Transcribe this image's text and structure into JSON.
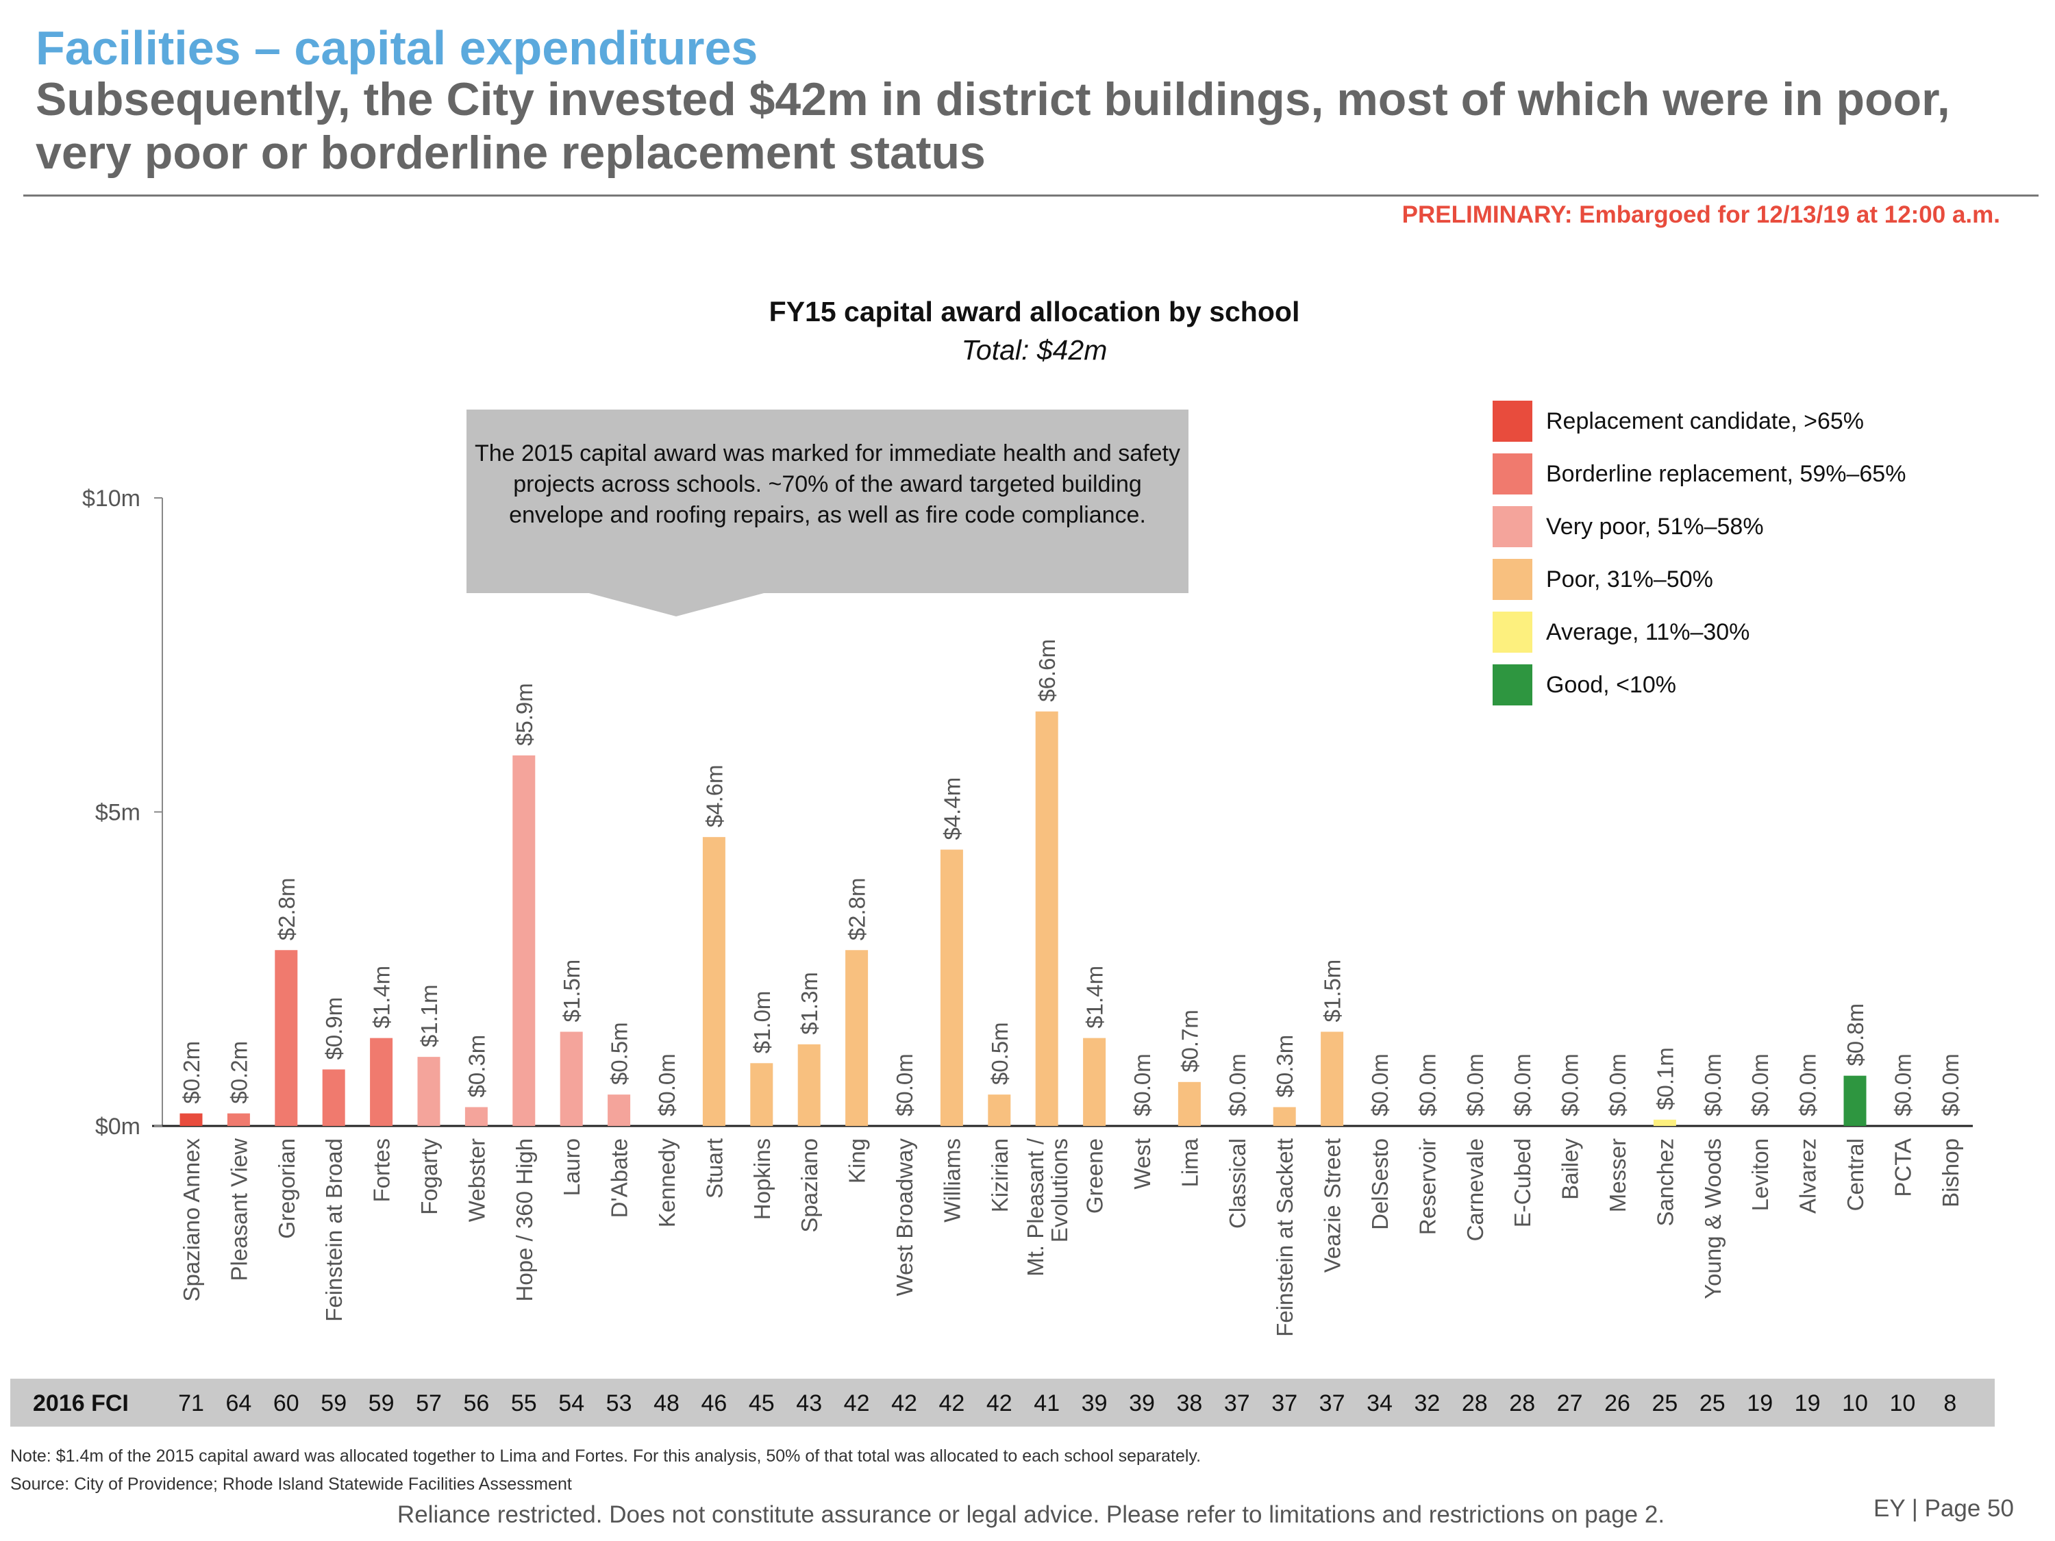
{
  "header": {
    "section_title": "Facilities – capital expenditures",
    "headline": "Subsequently, the City invested $42m in district buildings, most of which were in poor, very poor or borderline replacement status",
    "embargo": "PRELIMINARY: Embargoed for 12/13/19 at 12:00 a.m."
  },
  "callout": "The 2015 capital award was marked for immediate health and safety projects across schools. ~70% of the award targeted building envelope and roofing repairs, as well as fire code compliance.",
  "fci_label": "2016 FCI",
  "footnotes": {
    "note": "Note: $1.4m of the 2015 capital award was allocated together to Lima and Fortes. For this analysis, 50% of that total was allocated to each school separately.",
    "source": "Source: City of Providence; Rhode Island Statewide Facilities Assessment",
    "disclaimer": "Reliance restricted. Does not constitute assurance or legal advice. Please refer to limitations and restrictions on page 2.",
    "page": "EY | Page 50"
  },
  "chart_data": {
    "type": "bar",
    "title": "FY15 capital award allocation by school",
    "subtitle": "Total: $42m",
    "xlabel": "",
    "ylabel": "",
    "ylim": [
      0,
      10
    ],
    "yticks": [
      {
        "value": 0,
        "label": "$0m"
      },
      {
        "value": 5,
        "label": "$5m"
      },
      {
        "value": 10,
        "label": "$10m"
      }
    ],
    "legend_position": "top-right",
    "legend": [
      {
        "key": "replacement",
        "label": "Replacement candidate, >65%",
        "color": "#E84C3D"
      },
      {
        "key": "borderline",
        "label": "Borderline replacement, 59%–65%",
        "color": "#F07A6E"
      },
      {
        "key": "verypoor",
        "label": "Very poor, 51%–58%",
        "color": "#F4A49B"
      },
      {
        "key": "poor",
        "label": "Poor, 31%–50%",
        "color": "#F8C07F"
      },
      {
        "key": "average",
        "label": "Average, 11%–30%",
        "color": "#FDF07E"
      },
      {
        "key": "good",
        "label": "Good, <10%",
        "color": "#2E9640"
      }
    ],
    "categories": [
      "Spaziano Annex",
      "Pleasant View",
      "Gregorian",
      "Feinstein at Broad",
      "Fortes",
      "Fogarty",
      "Webster",
      "Hope / 360 High",
      "Lauro",
      "D'Abate",
      "Kennedy",
      "Stuart",
      "Hopkins",
      "Spaziano",
      "King",
      "West Broadway",
      "Williams",
      "Kizirian",
      "Mt. Pleasant /|Evolutions",
      "Greene",
      "West",
      "Lima",
      "Classical",
      "Feinstein at Sackett",
      "Veazie Street",
      "DelSesto",
      "Reservoir",
      "Carnevale",
      "E-Cubed",
      "Bailey",
      "Messer",
      "Sanchez",
      "Young & Woods",
      "Leviton",
      "Alvarez",
      "Central",
      "PCTA",
      "Bishop"
    ],
    "values": [
      0.2,
      0.2,
      2.8,
      0.9,
      1.4,
      1.1,
      0.3,
      5.9,
      1.5,
      0.5,
      0.0,
      4.6,
      1.0,
      1.3,
      2.8,
      0.0,
      4.4,
      0.5,
      6.6,
      1.4,
      0.0,
      0.7,
      0.0,
      0.3,
      1.5,
      0.0,
      0.0,
      0.0,
      0.0,
      0.0,
      0.0,
      0.1,
      0.0,
      0.0,
      0.0,
      0.8,
      0.0,
      0.0
    ],
    "value_labels": [
      "$0.2m",
      "$0.2m",
      "$2.8m",
      "$0.9m",
      "$1.4m",
      "$1.1m",
      "$0.3m",
      "$5.9m",
      "$1.5m",
      "$0.5m",
      "$0.0m",
      "$4.6m",
      "$1.0m",
      "$1.3m",
      "$2.8m",
      "$0.0m",
      "$4.4m",
      "$0.5m",
      "$6.6m",
      "$1.4m",
      "$0.0m",
      "$0.7m",
      "$0.0m",
      "$0.3m",
      "$1.5m",
      "$0.0m",
      "$0.0m",
      "$0.0m",
      "$0.0m",
      "$0.0m",
      "$0.0m",
      "$0.1m",
      "$0.0m",
      "$0.0m",
      "$0.0m",
      "$0.8m",
      "$0.0m",
      "$0.0m"
    ],
    "fci": [
      71,
      64,
      60,
      59,
      59,
      57,
      56,
      55,
      54,
      53,
      48,
      46,
      45,
      43,
      42,
      42,
      42,
      42,
      41,
      39,
      39,
      38,
      37,
      37,
      37,
      34,
      32,
      28,
      28,
      27,
      26,
      25,
      25,
      19,
      19,
      10,
      10,
      8
    ],
    "status": [
      "replacement",
      "borderline",
      "borderline",
      "borderline",
      "borderline",
      "verypoor",
      "verypoor",
      "verypoor",
      "verypoor",
      "verypoor",
      "poor",
      "poor",
      "poor",
      "poor",
      "poor",
      "poor",
      "poor",
      "poor",
      "poor",
      "poor",
      "poor",
      "poor",
      "poor",
      "poor",
      "poor",
      "poor",
      "poor",
      "average",
      "average",
      "average",
      "average",
      "average",
      "average",
      "average",
      "average",
      "good",
      "good",
      "good"
    ]
  }
}
